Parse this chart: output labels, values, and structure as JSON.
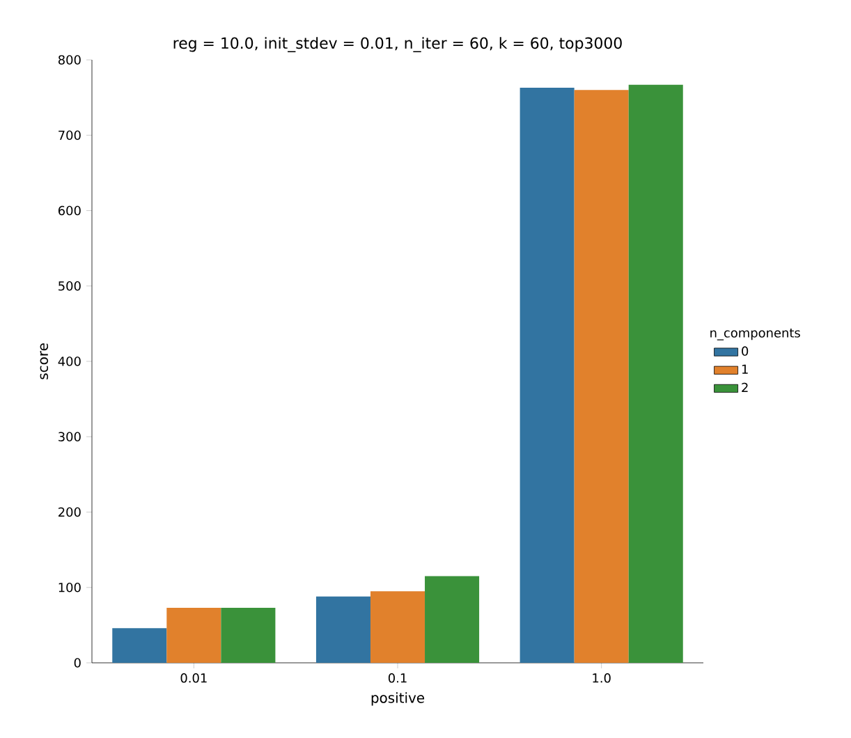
{
  "chart_data": {
    "type": "bar",
    "title": "reg = 10.0, init_stdev = 0.01, n_iter = 60, k = 60, top3000",
    "xlabel": "positive",
    "ylabel": "score",
    "legend_title": "n_components",
    "categories": [
      "0.01",
      "0.1",
      "1.0"
    ],
    "series": [
      {
        "name": "0",
        "color": "#3274a1",
        "values": [
          46,
          88,
          763
        ]
      },
      {
        "name": "1",
        "color": "#e1812c",
        "values": [
          73,
          95,
          760
        ]
      },
      {
        "name": "2",
        "color": "#3a923a",
        "values": [
          73,
          115,
          767
        ]
      }
    ],
    "ylim": [
      0,
      800
    ],
    "yticks": [
      0,
      100,
      200,
      300,
      400,
      500,
      600,
      700,
      800
    ],
    "grid": false,
    "legend": "right"
  }
}
